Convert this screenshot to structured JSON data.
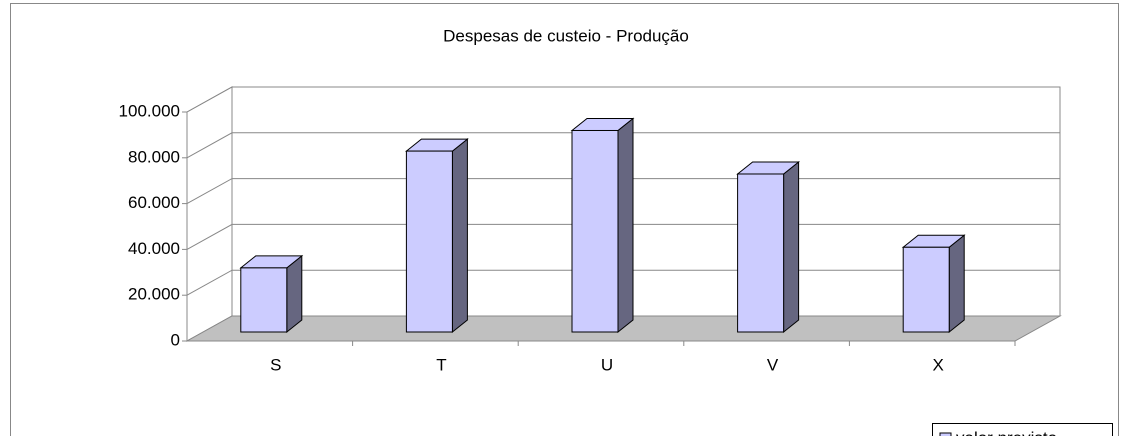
{
  "chart_data": {
    "type": "bar3d",
    "title": "Despesas de custeio - Produção",
    "categories": [
      "S",
      "T",
      "U",
      "V",
      "X"
    ],
    "series": [
      {
        "name": "valor previsto",
        "color": "#ccccff",
        "values": [
          28000,
          79000,
          88000,
          69000,
          37000
        ]
      }
    ],
    "ylim": [
      0,
      100000
    ],
    "yticks": [
      0,
      {
        "value": 20000,
        "label": "20.000"
      },
      {
        "value": 40000,
        "label": "40.000"
      },
      {
        "value": 60000,
        "label": "60.000"
      },
      {
        "value": 80000,
        "label": "80.000"
      },
      {
        "value": 100000,
        "label": "100.000"
      }
    ],
    "grid": true,
    "legend": "bottom-right"
  }
}
